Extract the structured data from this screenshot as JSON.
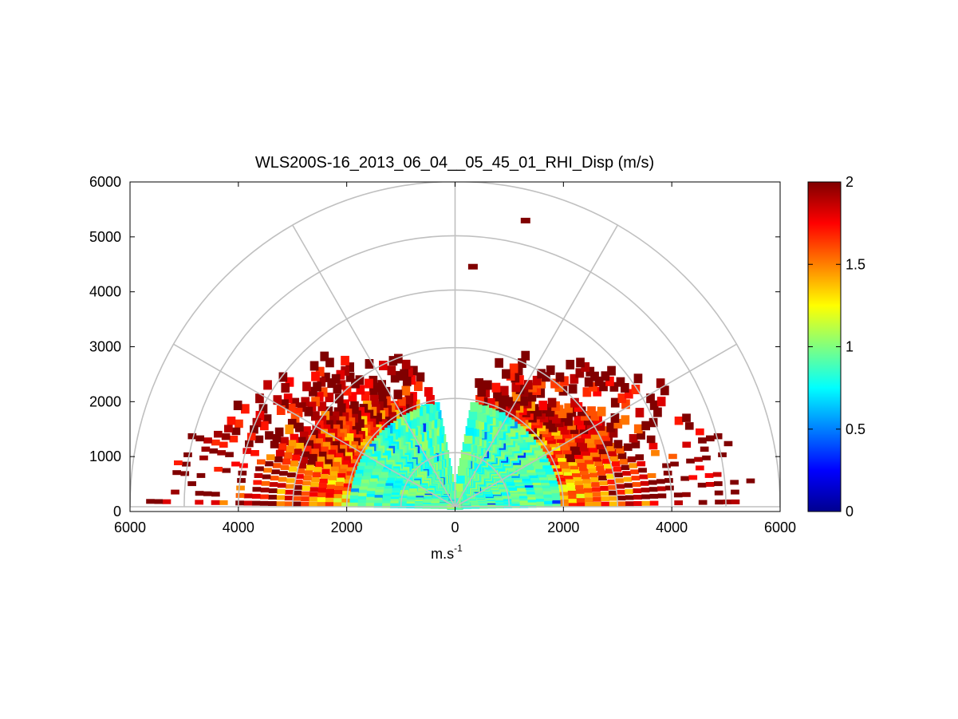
{
  "chart_data": {
    "type": "heatmap",
    "projection": "polar half-disc (RHI scan)",
    "title": "WLS200S-16_2013_06_04__05_45_01_RHI_Disp (m/s)",
    "xlabel": {
      "base": "m.s",
      "sup": "-1"
    },
    "ylabel": "",
    "xlim": [
      -6000,
      6000
    ],
    "ylim": [
      0,
      6000
    ],
    "x_tick_values": [
      -6000,
      -4000,
      -2000,
      0,
      2000,
      4000,
      6000
    ],
    "x_tick_labels": [
      "6000",
      "4000",
      "2000",
      "0",
      "2000",
      "4000",
      "6000"
    ],
    "y_tick_values": [
      0,
      1000,
      2000,
      3000,
      4000,
      5000,
      6000
    ],
    "y_tick_labels": [
      "0",
      "1000",
      "2000",
      "3000",
      "4000",
      "5000",
      "6000"
    ],
    "polar_grid": {
      "range_rings": [
        1000,
        2000,
        3000,
        4000,
        5000,
        6000
      ],
      "spokes_deg": [
        0,
        30,
        60,
        90,
        120,
        150,
        180
      ],
      "grid_color": "#c0c0c0"
    },
    "colorbar": {
      "colormap": "jet",
      "range": [
        0,
        2
      ],
      "tick_values": [
        0,
        0.5,
        1,
        1.5,
        2
      ],
      "tick_labels": [
        "0",
        "0.5",
        "1",
        "1.5",
        "2"
      ]
    },
    "value_field": {
      "units": "m/s",
      "elevation_coverage_deg": [
        0,
        80
      ],
      "max_range_m": 6000,
      "core": {
        "max_range_m": 2000,
        "typical_value": 0.9
      },
      "outer": {
        "typical_value": 1.6,
        "high_value": 2.0
      },
      "isolated_cells": [
        {
          "x": 1300,
          "y": 5290,
          "value": 2.0
        },
        {
          "x": 330,
          "y": 4450,
          "value": 2.0
        }
      ]
    }
  }
}
